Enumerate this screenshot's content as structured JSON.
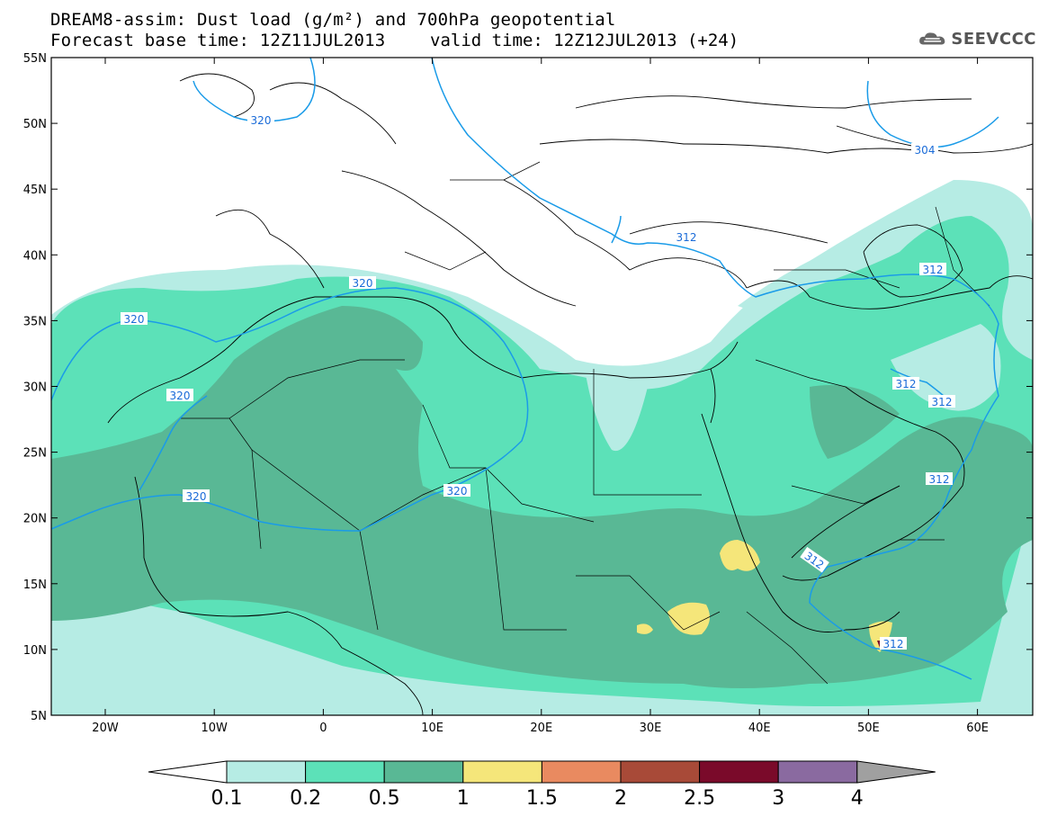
{
  "header": {
    "line1": "DREAM8-assim: Dust load (g/m²) and 700hPa geopotential",
    "line2_left": "Forecast base time: 12Z11JUL2013",
    "line2_right": "valid time: 12Z12JUL2013 (+24)"
  },
  "logo": {
    "text": "SEEVCCC",
    "icon": "cloud-logo-icon"
  },
  "map": {
    "lat_labels": [
      "55N",
      "50N",
      "45N",
      "40N",
      "35N",
      "30N",
      "25N",
      "20N",
      "15N",
      "10N",
      "5N"
    ],
    "lon_labels": [
      "20W",
      "10W",
      "0",
      "10E",
      "20E",
      "30E",
      "40E",
      "50E",
      "60E"
    ],
    "contour_labels": [
      {
        "text": "320"
      },
      {
        "text": "320"
      },
      {
        "text": "320"
      },
      {
        "text": "320"
      },
      {
        "text": "320"
      },
      {
        "text": "320"
      },
      {
        "text": "304"
      },
      {
        "text": "312"
      },
      {
        "text": "312"
      },
      {
        "text": "312"
      },
      {
        "text": "312"
      },
      {
        "text": "312"
      },
      {
        "text": "312"
      },
      {
        "text": "312"
      }
    ],
    "colors": {
      "level_0_1": "#b6ece4",
      "level_0_2": "#5ce1b8",
      "level_0_5": "#59b895",
      "level_1": "#f5e67a",
      "level_1_5": "#e98a60",
      "level_2": "#a84a38",
      "level_2_5": "#7a0a2a",
      "level_3": "#8a6aa0",
      "level_4": "#a0a0a0",
      "contour": "#1a9be8"
    }
  },
  "colorbar": {
    "labels": [
      "0.1",
      "0.2",
      "0.5",
      "1",
      "1.5",
      "2",
      "2.5",
      "3",
      "4"
    ]
  }
}
